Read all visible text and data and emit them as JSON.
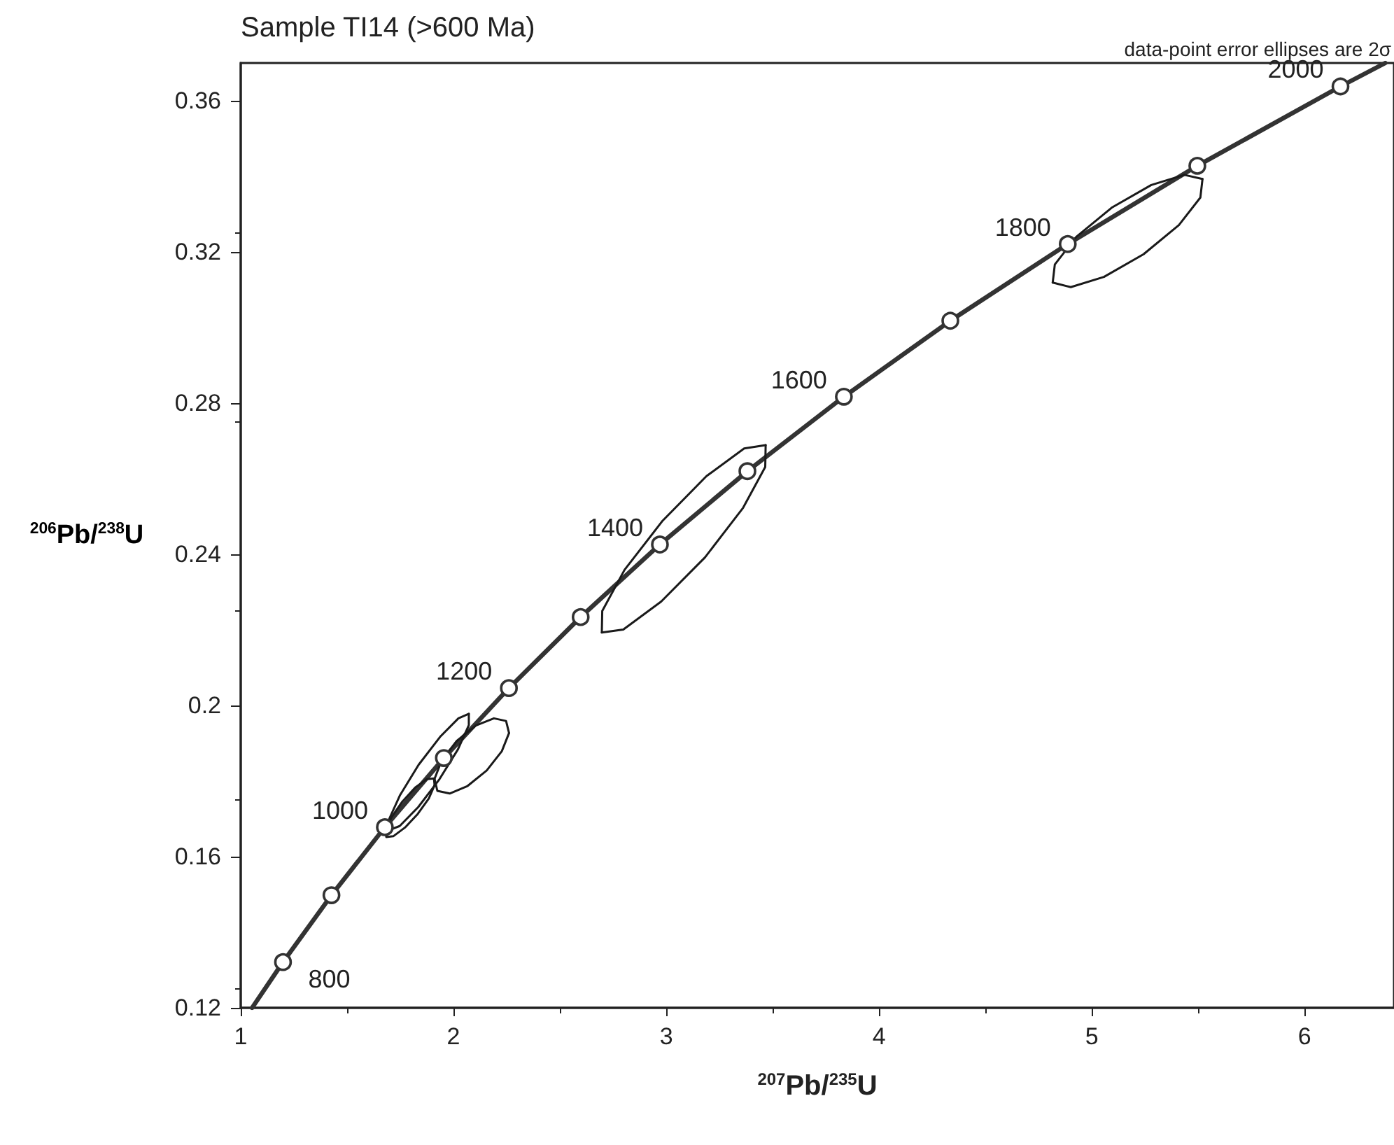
{
  "chart_data": {
    "type": "line",
    "title": "Sample TI14 (>600 Ma)",
    "xlabel": "$^{207}$Pb/$^{235}$U",
    "ylabel": "$^{206}$Pb/$^{238}$U",
    "xlim": [
      1,
      6.42
    ],
    "xticks": [
      1,
      2,
      3,
      4,
      5,
      6
    ],
    "ylim": [
      0.12,
      0.37
    ],
    "yticks": [
      0.12,
      0.16,
      0.2,
      0.24,
      0.28,
      0.32,
      0.36
    ],
    "grid": false,
    "annotations": [
      "data-point error ellipses are 2σ",
      {
        "text": "800",
        "x": 1.1987,
        "y": 0.1321
      },
      {
        "text": "1000",
        "x": 1.6774,
        "y": 0.1678
      },
      {
        "text": "1200",
        "x": 2.2603,
        "y": 0.2046
      },
      {
        "text": "1400",
        "x": 2.97,
        "y": 0.2426
      },
      {
        "text": "1600",
        "x": 3.8346,
        "y": 0.2817
      },
      {
        "text": "1800",
        "x": 4.8867,
        "y": 0.3221
      },
      {
        "text": "2000",
        "x": 6.1685,
        "y": 0.3638
      }
    ],
    "series": [
      {
        "color": "#333333",
        "marker": "none",
        "x": [
          1.0534,
          1.1987,
          1.4264,
          1.6774,
          1.9546,
          2.2603,
          2.5976,
          2.97,
          3.3812,
          3.8346,
          4.3349,
          4.8867,
          5.4957,
          6.1685,
          6.379
        ],
        "values": [
          0.12,
          0.1321,
          0.1498,
          0.1678,
          0.1861,
          0.2046,
          0.2234,
          0.2426,
          0.262,
          0.2817,
          0.3018,
          0.3221,
          0.3428,
          0.3638,
          0.37
        ]
      },
      {
        "color": "#1a1a1a",
        "marker": "none",
        "x": [
          1.911,
          1.884,
          1.832,
          1.772,
          1.717,
          1.684,
          1.681
        ],
        "values": [
          0.1789,
          0.1754,
          0.1713,
          0.1677,
          0.1654,
          0.1652,
          0.167
        ]
      },
      {
        "color": "#1a1a1a",
        "marker": "none",
        "x": [
          1.681,
          1.709,
          1.76,
          1.82,
          1.875,
          1.908,
          1.911
        ],
        "values": [
          0.167,
          0.1705,
          0.1746,
          0.1783,
          0.1805,
          0.1807,
          0.1789
        ]
      },
      {
        "color": "#1a1a1a",
        "marker": "none",
        "x": [
          2.072,
          2.072,
          2.021,
          1.934,
          1.834,
          1.747,
          1.697
        ],
        "values": [
          0.1978,
          0.1948,
          0.1884,
          0.1805,
          0.1731,
          0.1681,
          0.167
        ]
      },
      {
        "color": "#1a1a1a",
        "marker": "none",
        "x": [
          1.697,
          1.698,
          1.749,
          1.836,
          1.937,
          2.023,
          2.072
        ],
        "values": [
          0.167,
          0.17,
          0.1763,
          0.1843,
          0.1917,
          0.1966,
          0.1978
        ]
      },
      {
        "color": "#1a1a1a",
        "marker": "none",
        "x": [
          2.261,
          2.227,
          2.156,
          2.066,
          1.982,
          1.924,
          1.911
        ],
        "values": [
          0.1927,
          0.1879,
          0.1828,
          0.1787,
          0.1767,
          0.1774,
          0.1806
        ]
      },
      {
        "color": "#1a1a1a",
        "marker": "none",
        "x": [
          1.911,
          1.944,
          2.015,
          2.105,
          2.19,
          2.247,
          2.261
        ],
        "values": [
          0.1806,
          0.1854,
          0.1906,
          0.1947,
          0.1966,
          0.1959,
          0.1927
        ]
      },
      {
        "color": "#1a1a1a",
        "marker": "none",
        "x": [
          3.467,
          3.465,
          3.361,
          3.182,
          2.976,
          2.798,
          2.697
        ],
        "values": [
          0.2689,
          0.2631,
          0.2523,
          0.2392,
          0.2275,
          0.2201,
          0.2193
        ]
      },
      {
        "color": "#1a1a1a",
        "marker": "none",
        "x": [
          2.697,
          2.699,
          2.804,
          2.983,
          3.189,
          3.366,
          3.467
        ],
        "values": [
          0.2193,
          0.225,
          0.2359,
          0.2489,
          0.2607,
          0.268,
          0.2689
        ]
      },
      {
        "color": "#1a1a1a",
        "marker": "none",
        "x": [
          5.52,
          5.51,
          5.409,
          5.243,
          5.057,
          4.901,
          4.816
        ],
        "values": [
          0.3393,
          0.3344,
          0.3271,
          0.3194,
          0.3134,
          0.3107,
          0.3119
        ]
      },
      {
        "color": "#1a1a1a",
        "marker": "none",
        "x": [
          4.816,
          4.826,
          4.927,
          5.093,
          5.279,
          5.435,
          5.52
        ],
        "values": [
          0.3119,
          0.3167,
          0.324,
          0.3317,
          0.3377,
          0.3404,
          0.3393
        ]
      },
      {
        "type": "scatter",
        "color": "#333333",
        "marker": "circle",
        "x": [
          1.1987,
          1.4264,
          1.6774,
          1.9546,
          2.2603,
          2.5976,
          2.97,
          3.3812,
          3.8346,
          4.3349,
          4.8867,
          5.4957,
          6.1685
        ],
        "values": [
          0.1321,
          0.1498,
          0.1678,
          0.1861,
          0.2046,
          0.2234,
          0.2426,
          0.262,
          0.2817,
          0.3018,
          0.3221,
          0.3428,
          0.3638
        ]
      }
    ]
  }
}
